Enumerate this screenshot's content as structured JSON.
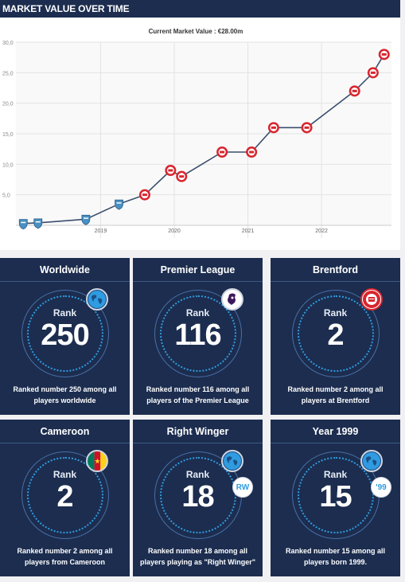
{
  "header": {
    "title": "MARKET VALUE OVER TIME"
  },
  "chart_data": {
    "type": "line",
    "title": "Current Market Value : €28.00m",
    "xlabel": "",
    "ylabel": "",
    "x_tick_labels": [
      "2019",
      "2020",
      "2021",
      "2022"
    ],
    "y_tick_labels": [
      "5,0",
      "10,0",
      "15,0",
      "20,0",
      "25,0",
      "30,0"
    ],
    "ylim": [
      0,
      30
    ],
    "xlim": [
      2017.85,
      2022.95
    ],
    "grid": true,
    "points": [
      {
        "x": 2017.95,
        "y": 0.3,
        "club": "cameroon-club"
      },
      {
        "x": 2018.15,
        "y": 0.4,
        "club": "cameroon-club"
      },
      {
        "x": 2018.8,
        "y": 1.0,
        "club": "cameroon-club"
      },
      {
        "x": 2019.25,
        "y": 3.5,
        "club": "cameroon-club"
      },
      {
        "x": 2019.6,
        "y": 5.0,
        "club": "brentford"
      },
      {
        "x": 2019.95,
        "y": 9.0,
        "club": "brentford"
      },
      {
        "x": 2020.1,
        "y": 8.0,
        "club": "brentford"
      },
      {
        "x": 2020.65,
        "y": 12.0,
        "club": "brentford"
      },
      {
        "x": 2021.05,
        "y": 12.0,
        "club": "brentford"
      },
      {
        "x": 2021.35,
        "y": 16.0,
        "club": "brentford"
      },
      {
        "x": 2021.8,
        "y": 16.0,
        "club": "brentford"
      },
      {
        "x": 2022.45,
        "y": 22.0,
        "club": "brentford"
      },
      {
        "x": 2022.7,
        "y": 25.0,
        "club": "brentford"
      },
      {
        "x": 2022.85,
        "y": 28.0,
        "club": "brentford"
      }
    ],
    "colors": {
      "line": "#3b4f6e",
      "grid": "#e3e3e3",
      "club_ring": "#d8252e",
      "cameroon_badge": "#4a90c2"
    }
  },
  "ranks": [
    {
      "title": "Worldwide",
      "label": "Rank",
      "value": "250",
      "desc": "Ranked number 250 among all players worldwide",
      "icon": "globe-icon"
    },
    {
      "title": "Premier League",
      "label": "Rank",
      "value": "116",
      "desc": "Ranked number 116 among all players of the Premier League",
      "icon": "premier-league-icon"
    },
    {
      "title": "Brentford",
      "label": "Rank",
      "value": "2",
      "desc": "Ranked number 2 among all players at Brentford",
      "icon": "brentford-crest-icon"
    },
    {
      "title": "Cameroon",
      "label": "Rank",
      "value": "2",
      "desc": "Ranked number 2 among all players from Cameroon",
      "icon": "cameroon-flag-icon"
    },
    {
      "title": "Right Winger",
      "label": "Rank",
      "value": "18",
      "desc": "Ranked number 18 among all players playing as \"Right Winger\"",
      "icon": "globe-icon",
      "pill": "RW"
    },
    {
      "title": "Year 1999",
      "label": "Rank",
      "value": "15",
      "desc": "Ranked number 15 among all players born 1999.",
      "icon": "globe-icon",
      "pill": "'99"
    }
  ],
  "theme": {
    "navy": "#1c2d4f",
    "accent": "#2f9be0",
    "red": "#d8252e"
  }
}
